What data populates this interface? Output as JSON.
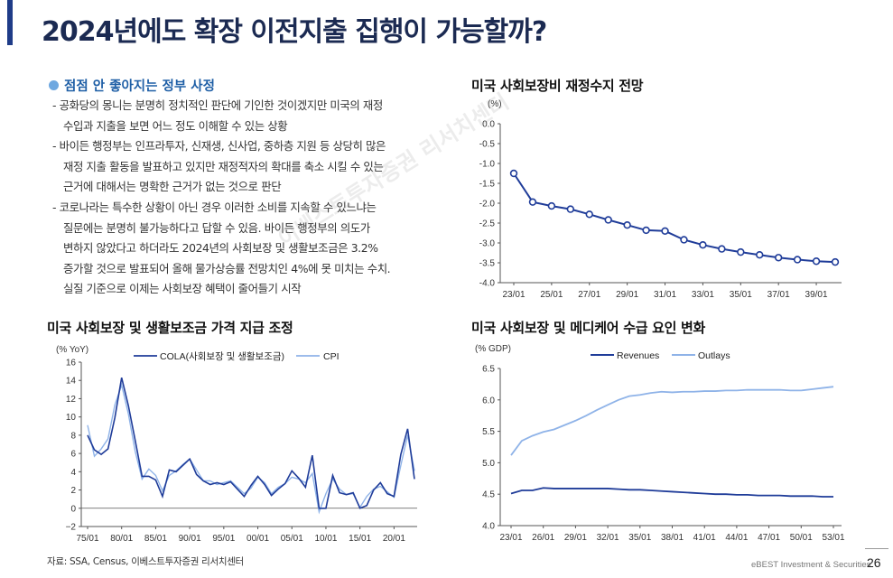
{
  "title": "2024년에도 확장 이전지출 집행이 가능할까?",
  "bullet": {
    "heading": "점점 안 좋아지는 정부 사정",
    "paragraphs": [
      [
        "- 공화당의 몽니는 분명히 정치적인 판단에 기인한 것이겠지만 미국의 재정",
        "수입과 지출을 보면 어느 정도 이해할 수 있는 상황"
      ],
      [
        "- 바이든 행정부는 인프라투자, 신재생, 신사업, 중하층 지원 등 상당히 많은",
        "재정 지출 활동을 발표하고 있지만 재정적자의 확대를 축소 시킬 수 있는",
        "근거에 대해서는 명확한 근거가 없는 것으로 판단"
      ],
      [
        "- 코로나라는 특수한 상황이 아닌 경우 이러한 소비를 지속할 수 있느냐는",
        "질문에는 분명히 불가능하다고 답할 수 있음. 바이든 행정부의 의도가",
        "변하지 않았다고 하더라도 2024년의 사회보장 및 생활보조금은 3.2%",
        "증가할 것으로 발표되어 올해 물가상승률 전망치인 4%에 못 미치는 수치.",
        "실질 기준으로 이제는 사회보장 혜택이 줄어들기 시작"
      ]
    ]
  },
  "source": "자료: SSA, Census, 이베스트투자증권 리서치센터",
  "footer": "eBEST Investment & Securities",
  "page_number": "26",
  "watermark": "이베스트투자증권 리서치센터",
  "colors": {
    "title": "#1b2a52",
    "accent": "#1f3c88",
    "series_dark": "#1f3c99",
    "series_light": "#8fb3e8"
  },
  "chart_data": [
    {
      "id": "ss-balance",
      "type": "line",
      "title": "미국 사회보장비 재정수지 전망",
      "ylabel": "(%)",
      "ylim": [
        -4.0,
        0.0
      ],
      "yticks": [
        "0.0",
        "-0.5",
        "-1.0",
        "-1.5",
        "-2.0",
        "-2.5",
        "-3.0",
        "-3.5",
        "-4.0"
      ],
      "xtick_labels": [
        "23/01",
        "25/01",
        "27/01",
        "29/01",
        "31/01",
        "33/01",
        "35/01",
        "37/01",
        "39/01"
      ],
      "x": [
        2023,
        2024,
        2025,
        2026,
        2027,
        2028,
        2029,
        2030,
        2031,
        2032,
        2033,
        2034,
        2035,
        2036,
        2037,
        2038,
        2039,
        2040
      ],
      "values": [
        -1.25,
        -1.97,
        -2.07,
        -2.15,
        -2.28,
        -2.42,
        -2.55,
        -2.68,
        -2.7,
        -2.92,
        -3.05,
        -3.15,
        -3.23,
        -3.3,
        -3.37,
        -3.42,
        -3.46,
        -3.48
      ]
    },
    {
      "id": "cola",
      "type": "line",
      "title": "미국 사회보장 및 생활보조금 가격 지급 조정",
      "ylabel": "(% YoY)",
      "ylim": [
        -2,
        16
      ],
      "yticks": [
        "16",
        "14",
        "12",
        "10",
        "8",
        "6",
        "4",
        "2",
        "0",
        "−2"
      ],
      "xtick_labels": [
        "75/01",
        "80/01",
        "85/01",
        "90/01",
        "95/01",
        "00/01",
        "05/01",
        "10/01",
        "15/01",
        "20/01"
      ],
      "x_start": 1975,
      "series": [
        {
          "name": "COLA(사회보장 및 생활보조금)",
          "values": [
            8.0,
            6.4,
            5.9,
            6.5,
            9.9,
            14.3,
            11.2,
            7.4,
            3.5,
            3.5,
            3.1,
            1.3,
            4.2,
            4.0,
            4.7,
            5.4,
            3.7,
            3.0,
            2.6,
            2.8,
            2.6,
            2.9,
            2.1,
            1.3,
            2.5,
            3.5,
            2.6,
            1.4,
            2.1,
            2.7,
            4.1,
            3.3,
            2.3,
            5.8,
            0.0,
            0.0,
            3.6,
            1.7,
            1.5,
            1.7,
            0.0,
            0.3,
            2.0,
            2.8,
            1.6,
            1.3,
            5.9,
            8.7,
            3.2
          ]
        },
        {
          "name": "CPI",
          "values": [
            9.1,
            5.7,
            6.5,
            7.6,
            11.3,
            13.5,
            10.3,
            6.2,
            3.2,
            4.3,
            3.6,
            1.9,
            3.6,
            4.1,
            4.8,
            5.4,
            4.2,
            3.0,
            3.0,
            2.6,
            2.8,
            3.0,
            2.3,
            1.6,
            2.2,
            3.4,
            2.8,
            1.6,
            2.3,
            2.7,
            3.4,
            3.2,
            2.8,
            3.8,
            -0.4,
            1.6,
            3.2,
            2.1,
            1.5,
            1.6,
            0.1,
            1.3,
            2.1,
            2.4,
            1.8,
            1.2,
            4.7,
            8.0,
            4.1
          ]
        }
      ]
    },
    {
      "id": "medicare",
      "type": "line",
      "title": "미국 사회보장 및 메디케어 수급 요인 변화",
      "ylabel": "(% GDP)",
      "ylim": [
        4.0,
        6.5
      ],
      "yticks": [
        "6.5",
        "6.0",
        "5.5",
        "5.0",
        "4.5",
        "4.0"
      ],
      "xtick_labels": [
        "23/01",
        "26/01",
        "29/01",
        "32/01",
        "35/01",
        "38/01",
        "41/01",
        "44/01",
        "47/01",
        "50/01",
        "53/01"
      ],
      "x_start": 2023,
      "series": [
        {
          "name": "Revenues",
          "values": [
            4.51,
            4.56,
            4.56,
            4.6,
            4.59,
            4.59,
            4.59,
            4.59,
            4.59,
            4.59,
            4.58,
            4.57,
            4.57,
            4.56,
            4.55,
            4.54,
            4.53,
            4.52,
            4.51,
            4.5,
            4.5,
            4.49,
            4.49,
            4.48,
            4.48,
            4.48,
            4.47,
            4.47,
            4.47,
            4.46,
            4.46
          ]
        },
        {
          "name": "Outlays",
          "values": [
            5.12,
            5.35,
            5.43,
            5.49,
            5.53,
            5.6,
            5.67,
            5.75,
            5.84,
            5.92,
            6.0,
            6.06,
            6.08,
            6.11,
            6.13,
            6.12,
            6.13,
            6.13,
            6.14,
            6.14,
            6.15,
            6.15,
            6.16,
            6.16,
            6.16,
            6.16,
            6.15,
            6.15,
            6.17,
            6.19,
            6.21
          ]
        }
      ]
    }
  ]
}
